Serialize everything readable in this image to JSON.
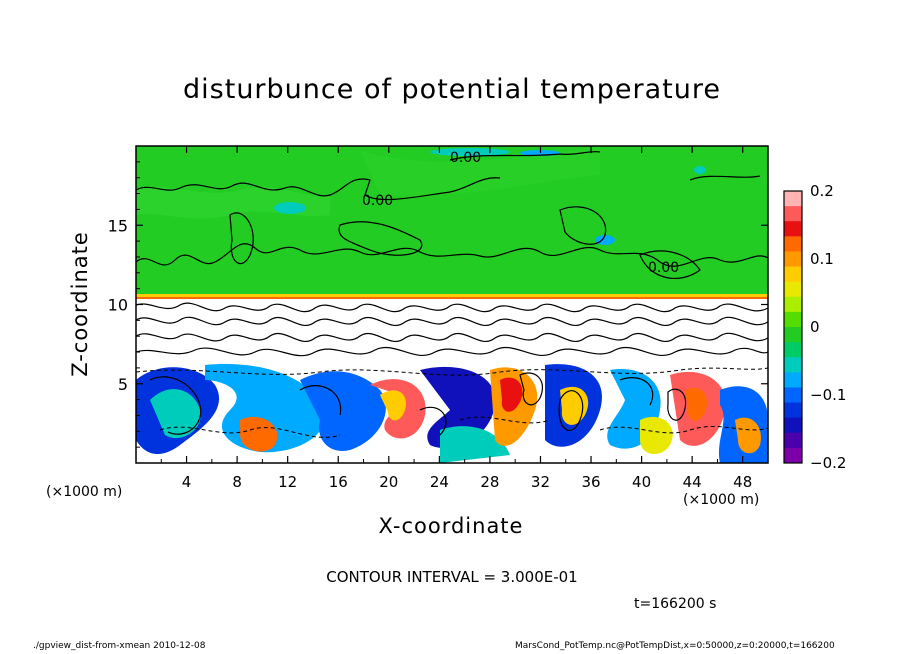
{
  "chart_data": {
    "type": "heatmap",
    "title": "disturbunce of potential temperature",
    "xlabel": "X-coordinate",
    "ylabel": "Z-coordinate",
    "x_unit": "(×1000 m)",
    "xlim": [
      0,
      50
    ],
    "ylim": [
      0,
      20
    ],
    "x_ticks": [
      4,
      8,
      12,
      16,
      20,
      24,
      28,
      32,
      36,
      40,
      44,
      48
    ],
    "y_ticks": [
      5,
      10,
      15
    ],
    "colorbar": {
      "range": [
        -0.2,
        0.2
      ],
      "ticks": [
        "0.2",
        "0.1",
        "0",
        "−0.1",
        "−0.2"
      ],
      "tick_values": [
        0.2,
        0.1,
        0,
        -0.1,
        -0.2
      ],
      "colors": [
        "#ffb3b3",
        "#ff5a5a",
        "#e81010",
        "#ff6a00",
        "#ff9900",
        "#ffcc00",
        "#e8e800",
        "#aaee00",
        "#55dd00",
        "#22cc22",
        "#00cc66",
        "#00ccbb",
        "#00aaff",
        "#0066ff",
        "#0033dd",
        "#1111bb",
        "#4a00aa",
        "#7b00a8"
      ]
    },
    "contour_labels": [
      "0.00",
      "0.00",
      "0.00"
    ],
    "contour_interval": "CONTOUR INTERVAL = 3.000E-01",
    "time": "t=166200 s",
    "footer_left": "./gpview_dist-from-xmean   2010-12-08",
    "footer_right": "MarsCond_PotTemp.nc@PotTempDist,x=0:50000,z=0:20000,t=166200"
  }
}
